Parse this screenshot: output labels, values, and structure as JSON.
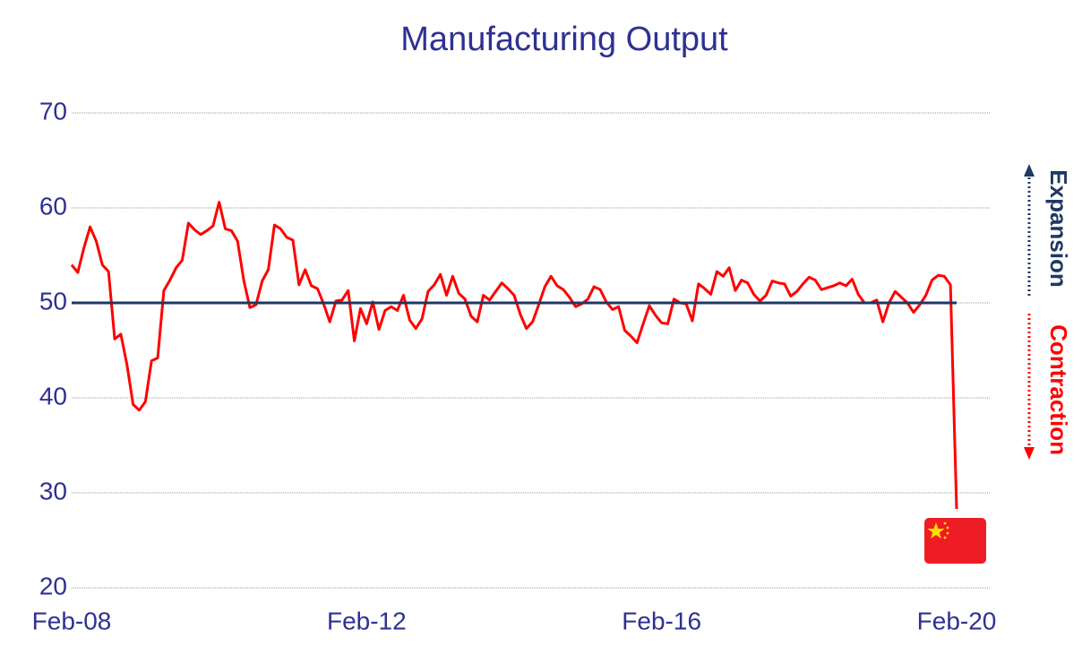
{
  "chart_data": {
    "type": "line",
    "title": "Manufacturing Output",
    "categories": [
      "Feb-08",
      null,
      null,
      null,
      null,
      null,
      null,
      null,
      null,
      null,
      null,
      null,
      null,
      null,
      null,
      null,
      null,
      null,
      null,
      null,
      null,
      null,
      null,
      null,
      null,
      null,
      null,
      null,
      null,
      null,
      null,
      null,
      null,
      null,
      null,
      null,
      null,
      null,
      null,
      null,
      null,
      null,
      null,
      null,
      null,
      null,
      null,
      null,
      "Feb-12",
      null,
      null,
      null,
      null,
      null,
      null,
      null,
      null,
      null,
      null,
      null,
      null,
      null,
      null,
      null,
      null,
      null,
      null,
      null,
      null,
      null,
      null,
      null,
      null,
      null,
      null,
      null,
      null,
      null,
      null,
      null,
      null,
      null,
      null,
      null,
      null,
      null,
      null,
      null,
      null,
      null,
      null,
      null,
      null,
      null,
      null,
      null,
      "Feb-16",
      null,
      null,
      null,
      null,
      null,
      null,
      null,
      null,
      null,
      null,
      null,
      null,
      null,
      null,
      null,
      null,
      null,
      null,
      null,
      null,
      null,
      null,
      null,
      null,
      null,
      null,
      null,
      null,
      null,
      null,
      null,
      null,
      null,
      null,
      null,
      null,
      null,
      null,
      null,
      null,
      null,
      null,
      null,
      null,
      null,
      null,
      null,
      "Feb-20"
    ],
    "series": [
      {
        "color": "#ff0000",
        "values": [
          54.0,
          53.2,
          55.8,
          58.0,
          56.5,
          54.0,
          53.3,
          46.2,
          46.7,
          43.5,
          39.3,
          38.7,
          39.6,
          43.9,
          44.2,
          51.3,
          52.4,
          53.7,
          54.5,
          58.4,
          57.7,
          57.2,
          57.6,
          58.1,
          60.6,
          57.8,
          57.6,
          56.5,
          52.4,
          49.5,
          49.8,
          52.3,
          53.5,
          58.2,
          57.8,
          56.9,
          56.6,
          51.9,
          53.5,
          51.8,
          51.5,
          49.9,
          48.0,
          50.2,
          50.3,
          51.3,
          46.0,
          49.4,
          47.8,
          50.1,
          47.2,
          49.2,
          49.6,
          49.2,
          50.8,
          48.2,
          47.3,
          48.3,
          51.2,
          51.9,
          53.0,
          50.8,
          52.8,
          51.0,
          50.4,
          48.6,
          48.0,
          50.8,
          50.3,
          51.2,
          52.1,
          51.5,
          50.8,
          48.8,
          47.3,
          48.0,
          49.8,
          51.7,
          52.8,
          51.8,
          51.4,
          50.6,
          49.6,
          49.9,
          50.4,
          51.7,
          51.4,
          50.1,
          49.3,
          49.6,
          47.1,
          46.5,
          45.8,
          47.8,
          49.7,
          48.7,
          47.9,
          47.8,
          50.4,
          50.0,
          49.9,
          48.1,
          52.0,
          51.5,
          50.9,
          53.3,
          52.8,
          53.7,
          51.3,
          52.4,
          52.1,
          50.9,
          50.2,
          50.8,
          52.3,
          52.1,
          52.0,
          50.7,
          51.2,
          52.0,
          52.7,
          52.4,
          51.4,
          51.6,
          51.8,
          52.1,
          51.8,
          52.5,
          50.9,
          50.0,
          50.0,
          50.3,
          48.0,
          50.0,
          51.2,
          50.6,
          50.0,
          49.0,
          49.8,
          50.8,
          52.4,
          52.9,
          52.8,
          51.9,
          28.3
        ]
      }
    ],
    "reference_line": {
      "value": 50,
      "color": "#1f3864"
    },
    "ylim": [
      20,
      70
    ],
    "yticks": [
      20,
      30,
      40,
      50,
      60,
      70
    ],
    "grid": true,
    "annotations": {
      "expansion": "Expansion",
      "contraction": "Contraction"
    }
  }
}
